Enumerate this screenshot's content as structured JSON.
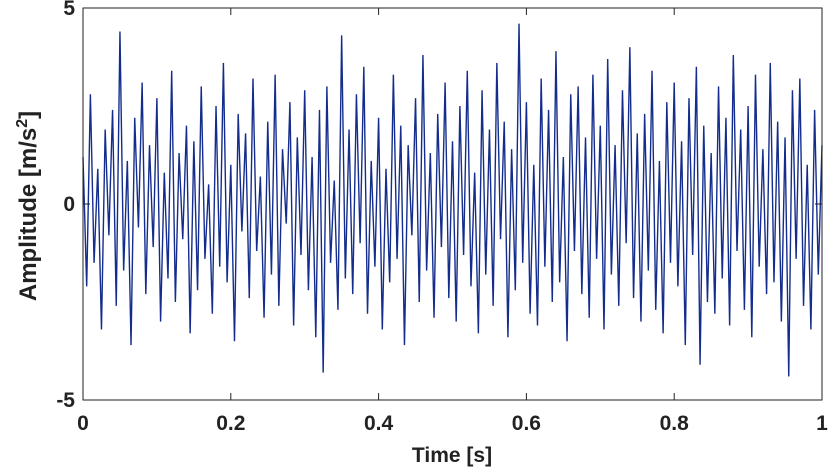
{
  "chart_data": {
    "type": "line",
    "xlabel": "Time [s]",
    "ylabel": [
      "Amplitude [m/s",
      "2",
      "]"
    ],
    "xlim": [
      0,
      1
    ],
    "ylim": [
      -5,
      5
    ],
    "xticks": [
      0,
      0.2,
      0.4,
      0.6,
      0.8,
      1
    ],
    "yticks": [
      -5,
      0,
      5
    ],
    "x": [
      0,
      0.005,
      0.01,
      0.015,
      0.02,
      0.025,
      0.03,
      0.035,
      0.04,
      0.045,
      0.05,
      0.055,
      0.06,
      0.065,
      0.07,
      0.075,
      0.08,
      0.085,
      0.09,
      0.095,
      0.1,
      0.105,
      0.11,
      0.115,
      0.12,
      0.125,
      0.13,
      0.135,
      0.14,
      0.145,
      0.15,
      0.155,
      0.16,
      0.165,
      0.17,
      0.175,
      0.18,
      0.185,
      0.19,
      0.195,
      0.2,
      0.205,
      0.21,
      0.215,
      0.22,
      0.225,
      0.23,
      0.235,
      0.24,
      0.245,
      0.25,
      0.255,
      0.26,
      0.265,
      0.27,
      0.275,
      0.28,
      0.285,
      0.29,
      0.295,
      0.3,
      0.305,
      0.31,
      0.315,
      0.32,
      0.325,
      0.33,
      0.335,
      0.34,
      0.345,
      0.35,
      0.355,
      0.36,
      0.365,
      0.37,
      0.375,
      0.38,
      0.385,
      0.39,
      0.395,
      0.4,
      0.405,
      0.41,
      0.415,
      0.42,
      0.425,
      0.43,
      0.435,
      0.44,
      0.445,
      0.45,
      0.455,
      0.46,
      0.465,
      0.47,
      0.475,
      0.48,
      0.485,
      0.49,
      0.495,
      0.5,
      0.505,
      0.51,
      0.515,
      0.52,
      0.525,
      0.53,
      0.535,
      0.54,
      0.545,
      0.55,
      0.555,
      0.56,
      0.565,
      0.57,
      0.575,
      0.58,
      0.585,
      0.59,
      0.595,
      0.6,
      0.605,
      0.61,
      0.615,
      0.62,
      0.625,
      0.63,
      0.635,
      0.64,
      0.645,
      0.65,
      0.655,
      0.66,
      0.665,
      0.67,
      0.675,
      0.68,
      0.685,
      0.69,
      0.695,
      0.7,
      0.705,
      0.71,
      0.715,
      0.72,
      0.725,
      0.73,
      0.735,
      0.74,
      0.745,
      0.75,
      0.755,
      0.76,
      0.765,
      0.77,
      0.775,
      0.78,
      0.785,
      0.79,
      0.795,
      0.8,
      0.805,
      0.81,
      0.815,
      0.82,
      0.825,
      0.83,
      0.835,
      0.84,
      0.845,
      0.85,
      0.855,
      0.86,
      0.865,
      0.87,
      0.875,
      0.88,
      0.885,
      0.89,
      0.895,
      0.9,
      0.905,
      0.91,
      0.915,
      0.92,
      0.925,
      0.93,
      0.935,
      0.94,
      0.945,
      0.95,
      0.955,
      0.96,
      0.965,
      0.97,
      0.975,
      0.98,
      0.985,
      0.99,
      0.995,
      1
    ],
    "series": [
      {
        "color": "#142d8c",
        "values": [
          1.2,
          -2.1,
          2.8,
          -1.5,
          0.9,
          -3.2,
          1.9,
          -0.8,
          2.4,
          -2.6,
          4.4,
          -1.7,
          1.1,
          -3.6,
          2.2,
          -0.6,
          3.1,
          -2.3,
          1.5,
          -1.1,
          2.7,
          -3.0,
          0.8,
          -1.9,
          3.4,
          -2.5,
          1.3,
          -0.9,
          2.0,
          -3.3,
          1.6,
          -2.2,
          3.0,
          -1.4,
          0.5,
          -2.8,
          2.5,
          -1.6,
          3.6,
          -2.0,
          1.0,
          -3.5,
          2.3,
          -0.7,
          1.8,
          -2.4,
          3.2,
          -1.2,
          0.7,
          -2.9,
          2.1,
          -1.8,
          3.3,
          -2.6,
          1.4,
          -0.5,
          2.6,
          -3.1,
          1.7,
          -1.3,
          2.9,
          -2.2,
          1.2,
          -3.4,
          2.4,
          -4.3,
          3.0,
          -1.5,
          0.6,
          -2.7,
          4.3,
          -1.9,
          1.9,
          -2.3,
          2.8,
          -1.0,
          3.5,
          -2.8,
          1.1,
          -1.6,
          2.2,
          -3.2,
          0.9,
          -2.0,
          3.3,
          -1.4,
          2.0,
          -3.6,
          1.5,
          -0.8,
          2.7,
          -2.5,
          3.8,
          -1.7,
          1.3,
          -2.9,
          2.3,
          -1.1,
          3.1,
          -2.4,
          1.6,
          -3.0,
          2.5,
          -1.3,
          3.4,
          -2.1,
          0.8,
          -3.3,
          2.9,
          -1.8,
          1.9,
          -2.6,
          3.6,
          -0.9,
          2.1,
          -3.4,
          1.4,
          -2.2,
          4.6,
          -1.5,
          2.6,
          -2.8,
          1.0,
          -3.1,
          3.2,
          -1.6,
          2.4,
          -2.5,
          3.9,
          -2.0,
          1.2,
          -3.5,
          2.8,
          -1.2,
          3.0,
          -2.3,
          1.7,
          -2.9,
          3.3,
          -1.4,
          2.0,
          -3.2,
          3.7,
          -1.8,
          1.5,
          -2.6,
          2.9,
          -1.0,
          4.0,
          -2.4,
          1.8,
          -3.0,
          2.3,
          -1.7,
          3.4,
          -2.7,
          1.1,
          -3.3,
          2.6,
          -1.5,
          3.1,
          -2.1,
          1.6,
          -3.6,
          2.7,
          -1.3,
          3.5,
          -4.1,
          2.0,
          -2.5,
          1.3,
          -2.8,
          3.0,
          -1.9,
          2.2,
          -3.1,
          3.8,
          -1.2,
          1.9,
          -2.7,
          2.5,
          -3.4,
          3.3,
          -1.6,
          1.4,
          -2.3,
          3.6,
          -2.0,
          2.1,
          -3.0,
          1.7,
          -4.4,
          2.9,
          -1.4,
          3.2,
          -2.6,
          1.0,
          -3.2,
          2.4,
          -1.8,
          1.5
        ]
      }
    ]
  }
}
